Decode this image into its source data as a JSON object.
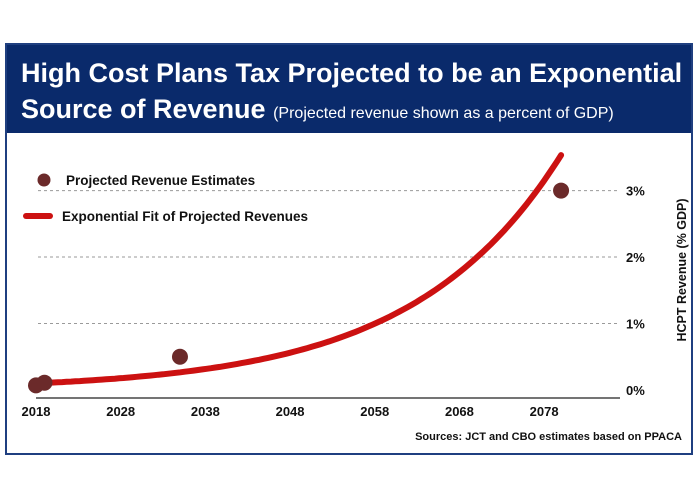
{
  "title_line1": "High Cost Plans Tax Projected to be an Exponential",
  "title_line2": "Source of Revenue",
  "subtitle": "(Projected revenue shown as a percent of GDP)",
  "source_note": "Sources: JCT and CBO estimates based on PPACA",
  "colors": {
    "title_bg": "#0a2a6b",
    "fit_line": "#cc1111",
    "point": "#6b2a2a",
    "grid": "#9a9a9a"
  },
  "chart_data": {
    "type": "scatter",
    "title": "High Cost Plans Tax Projected to be an Exponential Source of Revenue",
    "ylabel": "HCPT Revenue (% GDP)",
    "xlabel": "",
    "xlim": [
      2018,
      2082
    ],
    "ylim": [
      0,
      3.4
    ],
    "x_ticks": [
      2018,
      2028,
      2038,
      2048,
      2058,
      2068,
      2078
    ],
    "y_ticks": [
      {
        "value": 0,
        "label": "0%"
      },
      {
        "value": 1,
        "label": "1%"
      },
      {
        "value": 2,
        "label": "2%"
      },
      {
        "value": 3,
        "label": "3%"
      }
    ],
    "grid": "horizontal dashed",
    "legend_position": "top-left",
    "series": [
      {
        "name": "Projected Revenue Estimates",
        "kind": "points",
        "points": [
          {
            "x": 2018,
            "y": 0.07
          },
          {
            "x": 2019,
            "y": 0.11
          },
          {
            "x": 2035,
            "y": 0.5
          },
          {
            "x": 2080,
            "y": 3.0
          }
        ]
      },
      {
        "name": "Exponential Fit of Projected Revenues",
        "kind": "exponential_fit",
        "x_range": [
          2018,
          2080
        ],
        "fit": {
          "a": 0.1,
          "b": 0.0575,
          "x0": 2018
        }
      }
    ]
  }
}
